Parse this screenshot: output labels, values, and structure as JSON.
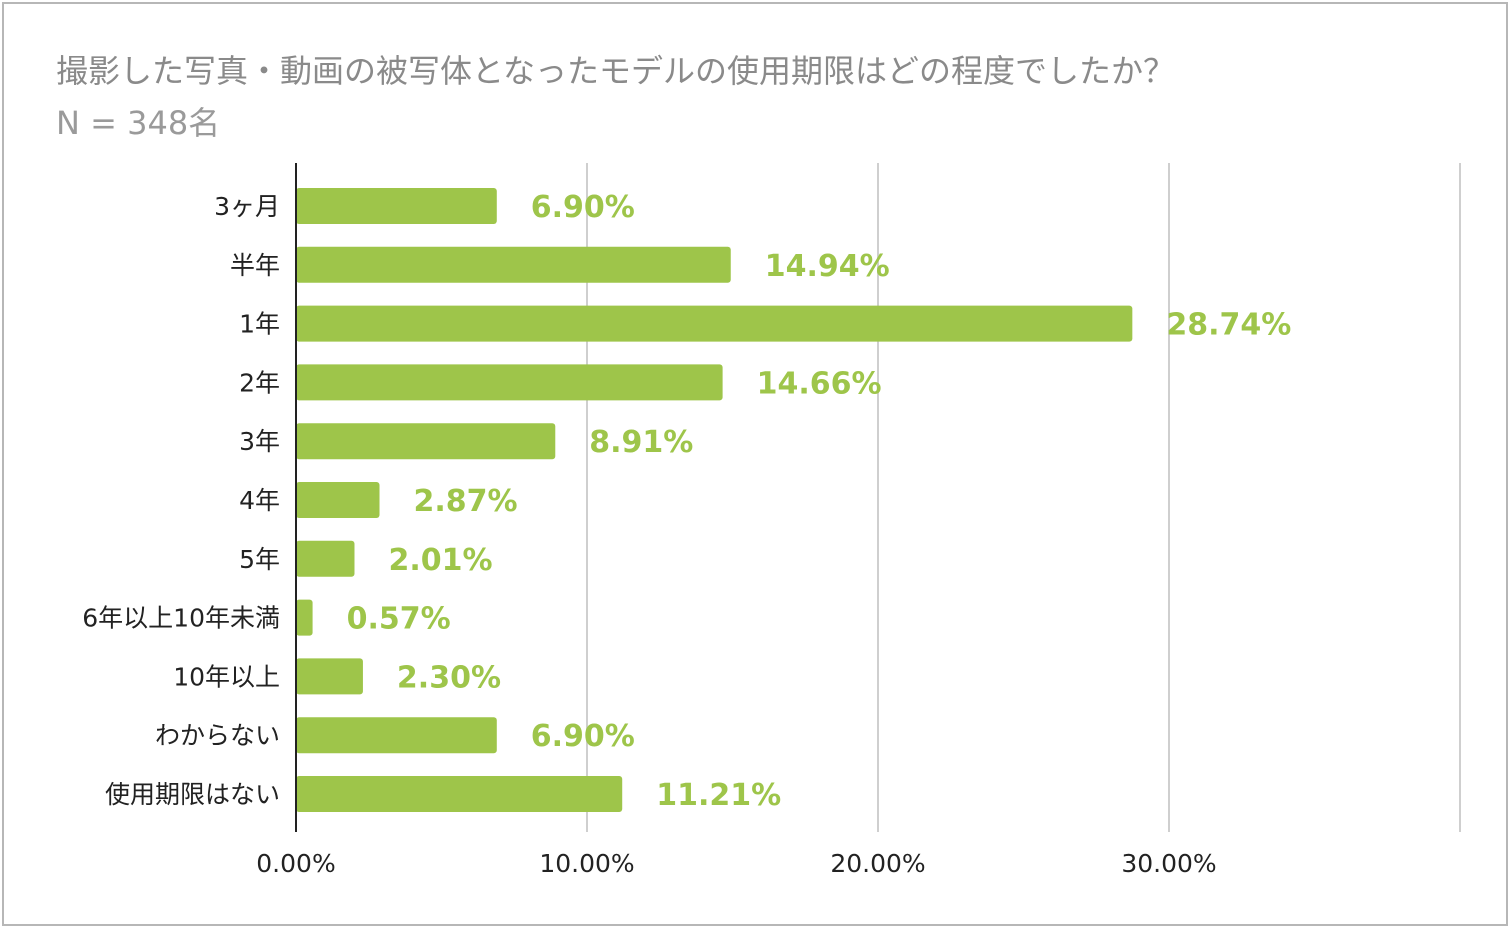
{
  "title": "撮影した写真・動画の被写体となったモデルの使用期限はどの程度でしたか？",
  "subtitle": "N = 348名",
  "colors": {
    "bar": "#9ec54a",
    "value_label": "#9ec54a",
    "grid": "#cfcfcf",
    "axis": "#222222"
  },
  "chart_data": {
    "type": "bar",
    "orientation": "horizontal",
    "categories": [
      "3ヶ月",
      "半年",
      "1年",
      "2年",
      "3年",
      "4年",
      "5年",
      "6年以上10年未満",
      "10年以上",
      "わからない",
      "使用期限はない"
    ],
    "values": [
      6.9,
      14.94,
      28.74,
      14.66,
      8.91,
      2.87,
      2.01,
      0.57,
      2.3,
      6.9,
      11.21
    ],
    "value_labels": [
      "6.90%",
      "14.94%",
      "28.74%",
      "14.66%",
      "8.91%",
      "2.87%",
      "2.01%",
      "0.57%",
      "2.30%",
      "6.90%",
      "11.21%"
    ],
    "x_ticks": [
      0,
      10,
      20,
      30
    ],
    "x_tick_labels": [
      "0.00%",
      "10.00%",
      "20.00%",
      "30.00%"
    ],
    "xlim": [
      0,
      40
    ],
    "grid": true,
    "legend": "none"
  }
}
